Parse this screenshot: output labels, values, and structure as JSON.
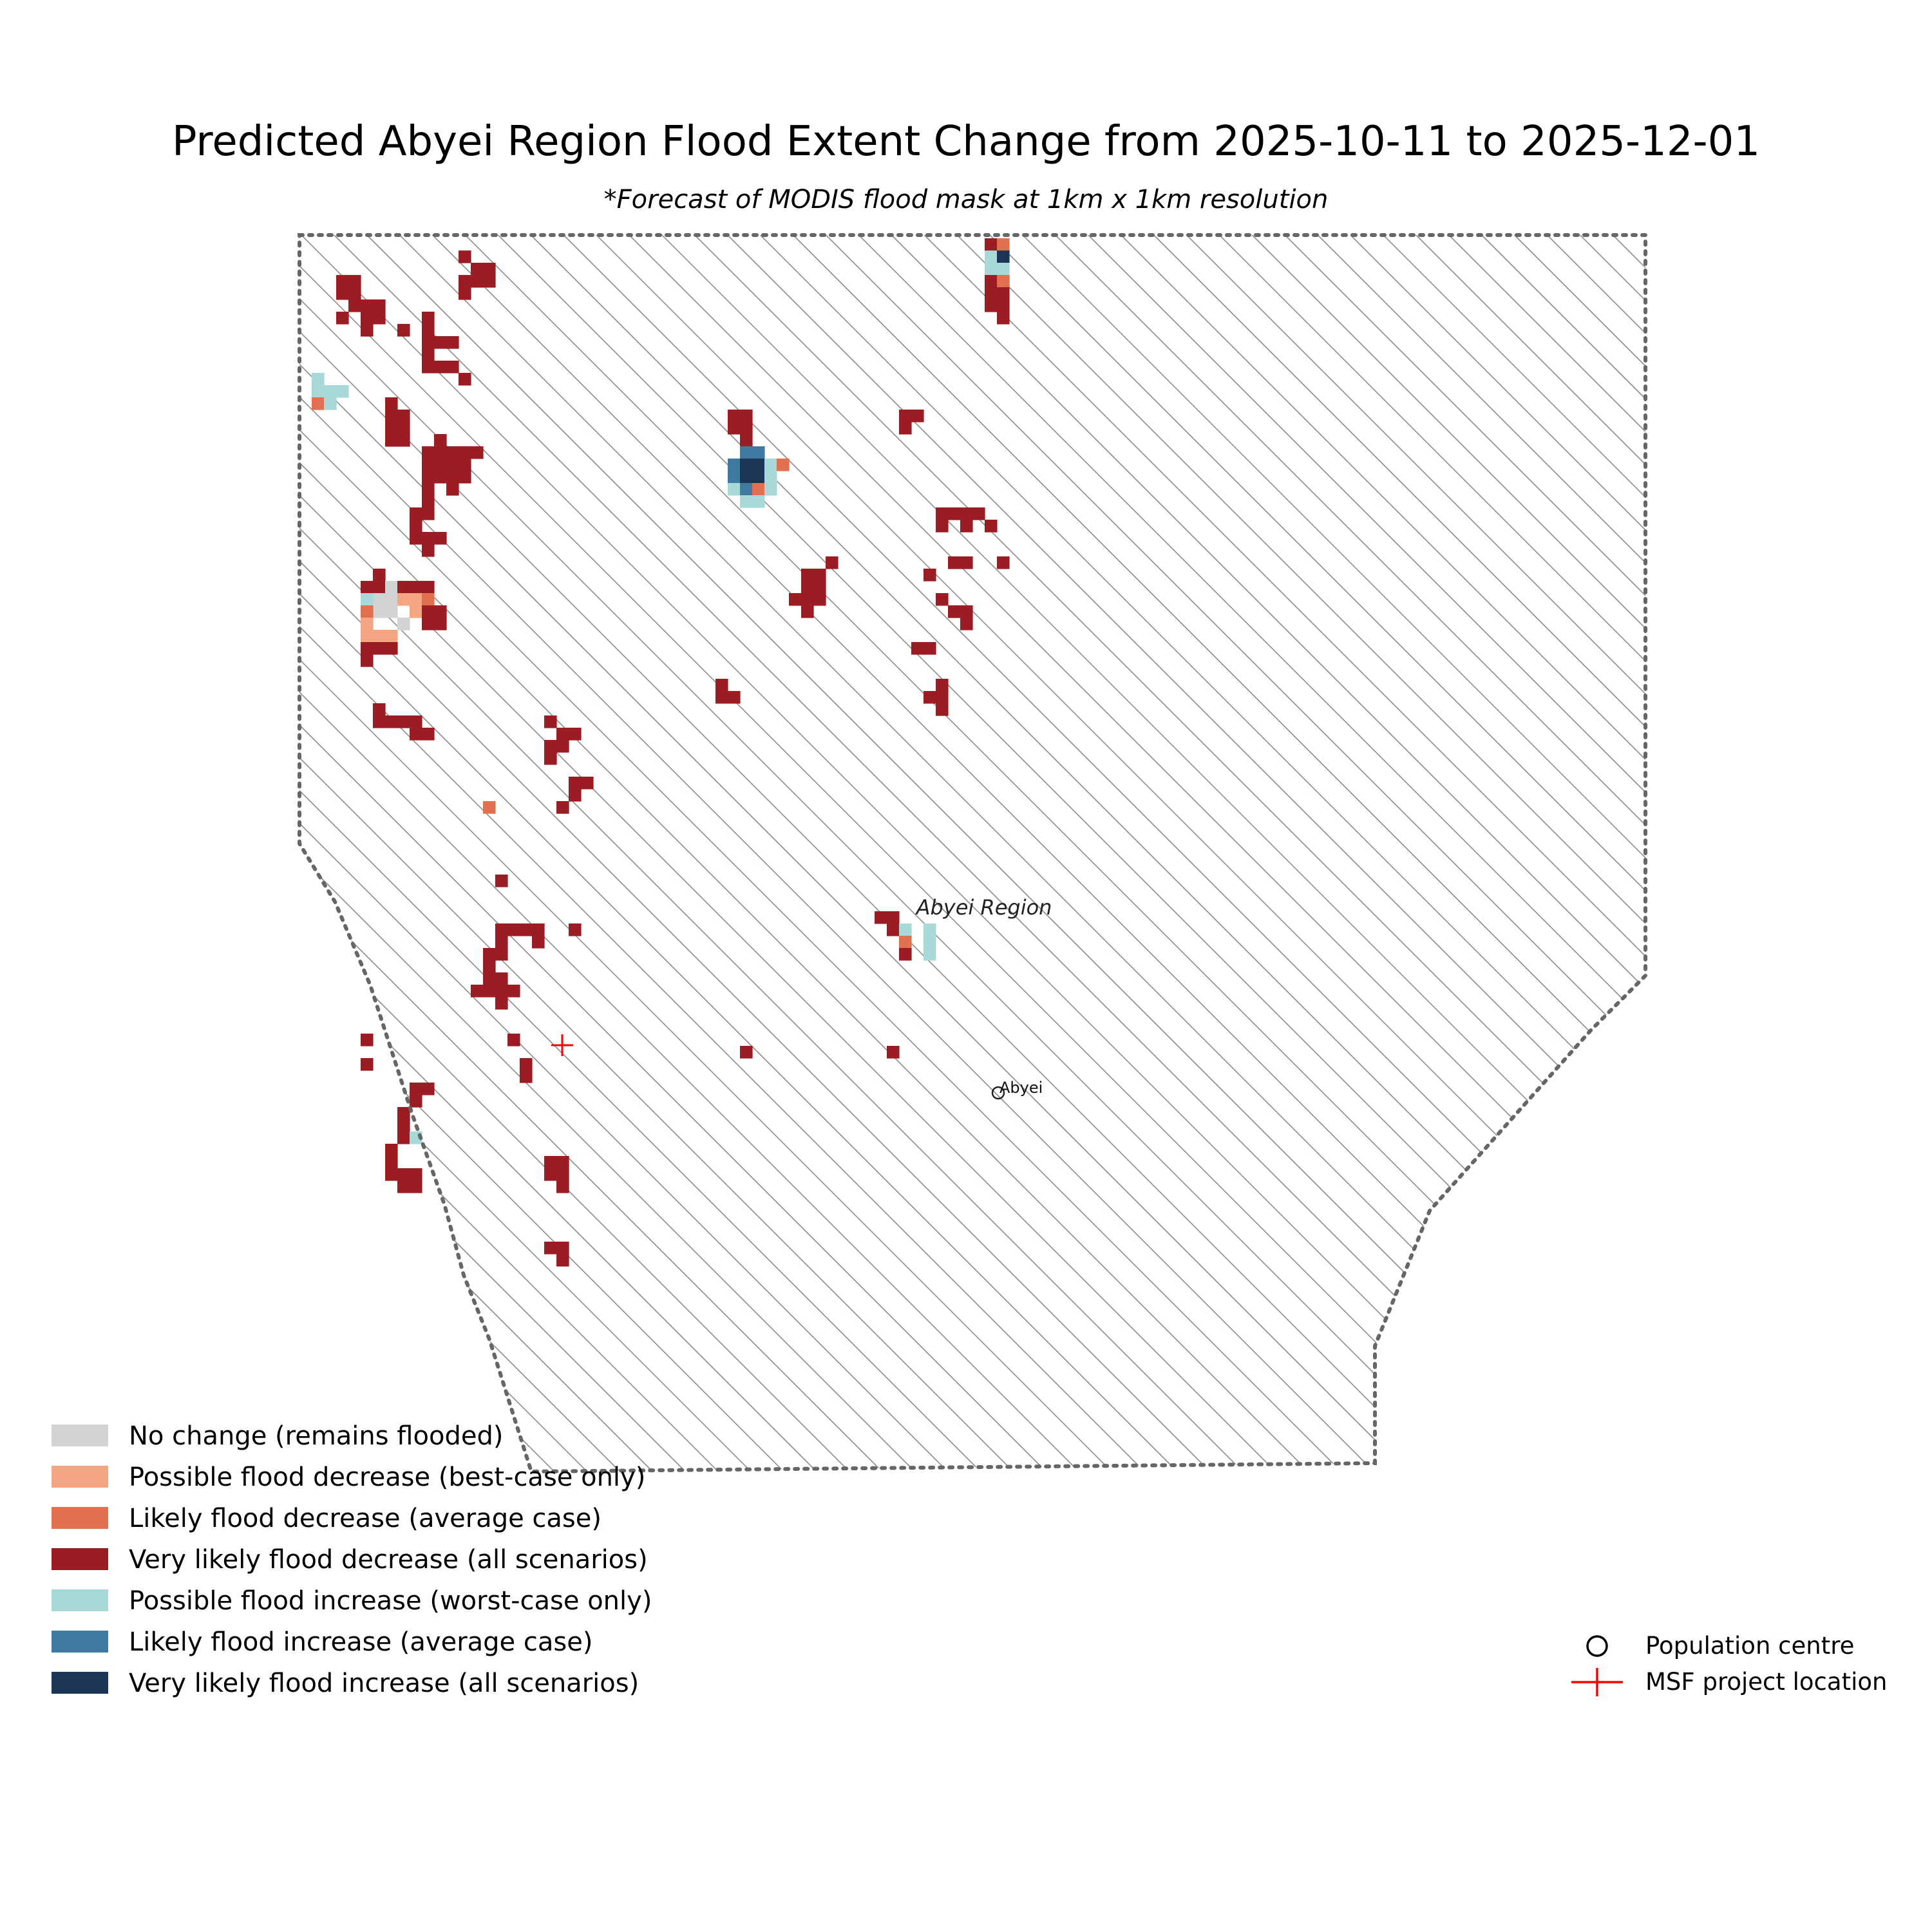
{
  "title": "Predicted Abyei Region Flood Extent Change from 2025-10-11 to 2025-12-01",
  "subtitle": "*Forecast of MODIS flood mask at 1km x 1km resolution",
  "region_label": "Abyei Region",
  "colors": {
    "no_change": "#d3d3d3",
    "possible_decrease": "#f4a582",
    "likely_decrease": "#e0704f",
    "very_likely_decrease": "#9b1c22",
    "possible_increase": "#a8d8d8",
    "likely_increase": "#3f7aa1",
    "very_likely_increase": "#1c3557",
    "hatch": "#8a8a8a",
    "boundary": "#666666",
    "msf": "#ff0000"
  },
  "legend": [
    {
      "label": "No change (remains flooded)",
      "color_key": "no_change"
    },
    {
      "label": "Possible flood decrease (best-case only)",
      "color_key": "possible_decrease"
    },
    {
      "label": "Likely flood decrease (average case)",
      "color_key": "likely_decrease"
    },
    {
      "label": "Very likely flood decrease (all scenarios)",
      "color_key": "very_likely_decrease"
    },
    {
      "label": "Possible flood increase (worst-case only)",
      "color_key": "possible_increase"
    },
    {
      "label": "Likely flood increase (average case)",
      "color_key": "likely_increase"
    },
    {
      "label": "Very likely flood increase (all scenarios)",
      "color_key": "very_likely_increase"
    }
  ],
  "markers_legend": {
    "population_centre": "Population centre",
    "msf_project": "MSF project location"
  },
  "population_centres": [
    {
      "name": "Abyei"
    }
  ],
  "msf_projects": [
    {
      "name": "MSF project location"
    }
  ]
}
